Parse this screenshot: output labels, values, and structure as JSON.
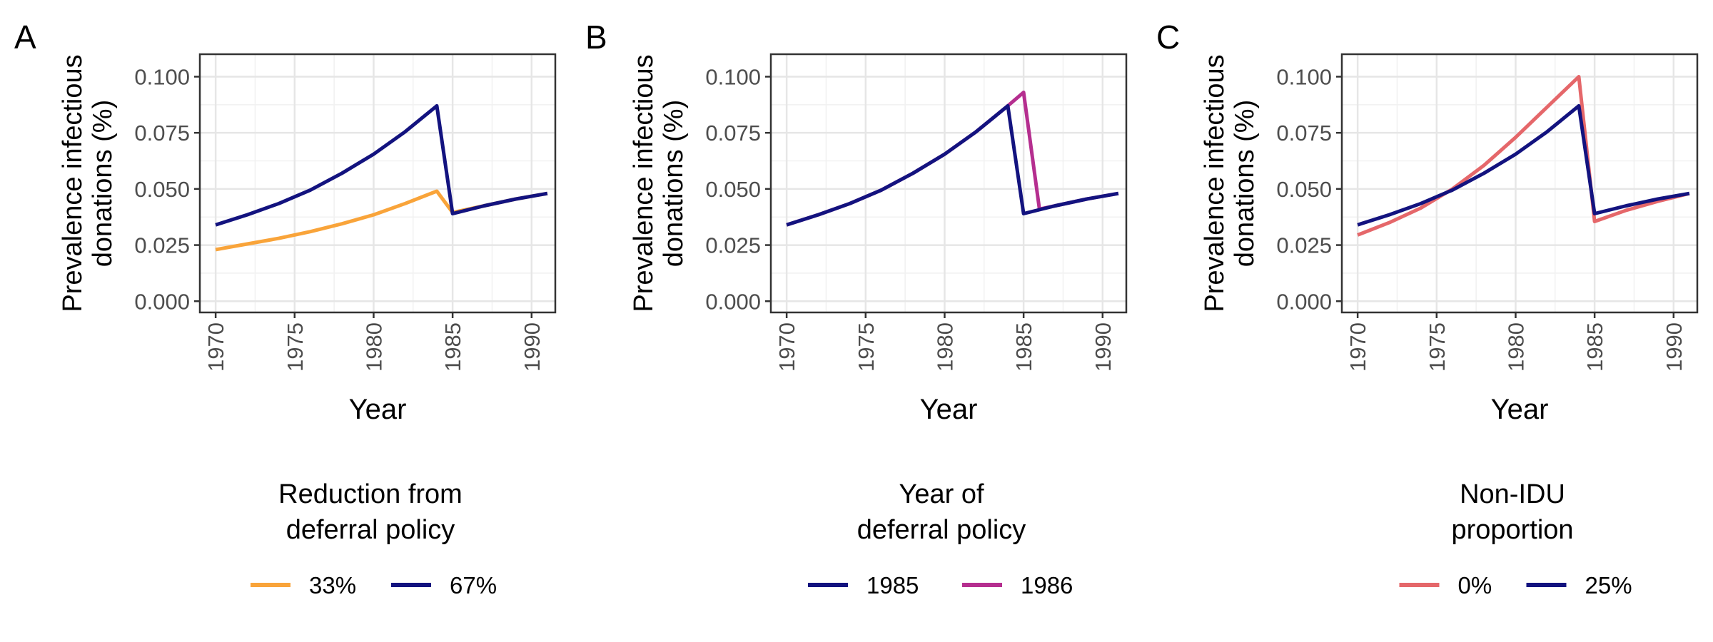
{
  "chart_data": [
    {
      "type": "line",
      "panel_label": "A",
      "ylabel_lines": [
        "Prevalence infectious",
        "donations (%)"
      ],
      "xlabel": "Year",
      "xlim": [
        1969,
        1991.5
      ],
      "ylim": [
        -0.005,
        0.11
      ],
      "xticks": [
        1970,
        1975,
        1980,
        1985,
        1990
      ],
      "yticks": [
        0.0,
        0.025,
        0.05,
        0.075,
        0.1
      ],
      "ytick_labels": [
        "0.000",
        "0.025",
        "0.050",
        "0.075",
        "0.100"
      ],
      "grid": true,
      "legend_title_lines": [
        "Reduction from",
        "deferral policy"
      ],
      "legend_position": "bottom",
      "series": [
        {
          "name": "33%",
          "color": "#F9A43A",
          "x": [
            1970,
            1972,
            1974,
            1976,
            1978,
            1980,
            1982,
            1984,
            1985,
            1987,
            1989,
            1991
          ],
          "y": [
            0.023,
            0.0255,
            0.028,
            0.031,
            0.0345,
            0.0385,
            0.0435,
            0.049,
            0.0395,
            0.0425,
            0.0455,
            0.048
          ]
        },
        {
          "name": "67%",
          "color": "#13137F",
          "x": [
            1970,
            1972,
            1974,
            1976,
            1978,
            1980,
            1982,
            1984,
            1985,
            1987,
            1989,
            1991
          ],
          "y": [
            0.034,
            0.0385,
            0.0435,
            0.0495,
            0.057,
            0.0655,
            0.0755,
            0.087,
            0.039,
            0.0425,
            0.0455,
            0.048
          ]
        }
      ]
    },
    {
      "type": "line",
      "panel_label": "B",
      "ylabel_lines": [
        "Prevalence infectious",
        "donations (%)"
      ],
      "xlabel": "Year",
      "xlim": [
        1969,
        1991.5
      ],
      "ylim": [
        -0.005,
        0.11
      ],
      "xticks": [
        1970,
        1975,
        1980,
        1985,
        1990
      ],
      "yticks": [
        0.0,
        0.025,
        0.05,
        0.075,
        0.1
      ],
      "ytick_labels": [
        "0.000",
        "0.025",
        "0.050",
        "0.075",
        "0.100"
      ],
      "grid": true,
      "legend_title_lines": [
        "Year of",
        "deferral policy"
      ],
      "legend_position": "bottom",
      "series": [
        {
          "name": "1986",
          "color": "#B52E8F",
          "x": [
            1970,
            1972,
            1974,
            1976,
            1978,
            1980,
            1982,
            1984,
            1985,
            1986,
            1987,
            1989,
            1991
          ],
          "y": [
            0.034,
            0.0385,
            0.0435,
            0.0495,
            0.057,
            0.0655,
            0.0755,
            0.087,
            0.093,
            0.041,
            0.0425,
            0.0455,
            0.048
          ]
        },
        {
          "name": "1985",
          "color": "#13137F",
          "x": [
            1970,
            1972,
            1974,
            1976,
            1978,
            1980,
            1982,
            1984,
            1985,
            1987,
            1989,
            1991
          ],
          "y": [
            0.034,
            0.0385,
            0.0435,
            0.0495,
            0.057,
            0.0655,
            0.0755,
            0.087,
            0.039,
            0.0425,
            0.0455,
            0.048
          ]
        }
      ],
      "legend_order": [
        "1985",
        "1986"
      ]
    },
    {
      "type": "line",
      "panel_label": "C",
      "ylabel_lines": [
        "Prevalence infectious",
        "donations (%)"
      ],
      "xlabel": "Year",
      "xlim": [
        1969,
        1991.5
      ],
      "ylim": [
        -0.005,
        0.11
      ],
      "xticks": [
        1970,
        1975,
        1980,
        1985,
        1990
      ],
      "yticks": [
        0.0,
        0.025,
        0.05,
        0.075,
        0.1
      ],
      "ytick_labels": [
        "0.000",
        "0.025",
        "0.050",
        "0.075",
        "0.100"
      ],
      "grid": true,
      "legend_title_lines": [
        "Non-IDU",
        "proportion"
      ],
      "legend_position": "bottom",
      "series": [
        {
          "name": "0%",
          "color": "#E5676A",
          "x": [
            1970,
            1972,
            1974,
            1976,
            1978,
            1980,
            1982,
            1984,
            1985,
            1987,
            1989,
            1991
          ],
          "y": [
            0.0295,
            0.035,
            0.0415,
            0.05,
            0.0605,
            0.073,
            0.0865,
            0.1,
            0.0355,
            0.0405,
            0.0445,
            0.048
          ]
        },
        {
          "name": "25%",
          "color": "#13137F",
          "x": [
            1970,
            1972,
            1974,
            1976,
            1978,
            1980,
            1982,
            1984,
            1985,
            1987,
            1989,
            1991
          ],
          "y": [
            0.034,
            0.0385,
            0.0435,
            0.0495,
            0.057,
            0.0655,
            0.0755,
            0.087,
            0.039,
            0.0425,
            0.0455,
            0.048
          ]
        }
      ]
    }
  ]
}
